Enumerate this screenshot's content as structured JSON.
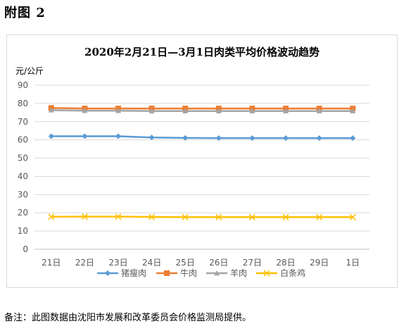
{
  "figure_label": "附图 2",
  "footnote": "备注：此图数据由沈阳市发展和改革委员会价格监测局提供。",
  "chart_data": {
    "type": "line",
    "title": "2020年2月21日—3月1日肉类平均价格波动趋势",
    "ylabel": "元/公斤",
    "xlabel": "",
    "ylim": [
      0,
      90
    ],
    "yticks": [
      0,
      10,
      20,
      30,
      40,
      50,
      60,
      70,
      80,
      90
    ],
    "grid": true,
    "legend_position": "bottom",
    "categories": [
      "21日",
      "22日",
      "23日",
      "24日",
      "25日",
      "26日",
      "27日",
      "28日",
      "29日",
      "1日"
    ],
    "series": [
      {
        "name": "猪瘦肉",
        "color": "#5b9bd5",
        "marker": "diamond",
        "values": [
          62.0,
          62.0,
          62.0,
          61.3,
          61.1,
          61.0,
          61.0,
          61.0,
          61.0,
          61.0
        ]
      },
      {
        "name": "牛肉",
        "color": "#ed7d31",
        "marker": "square",
        "values": [
          77.5,
          77.2,
          77.2,
          77.2,
          77.2,
          77.2,
          77.2,
          77.2,
          77.2,
          77.2
        ]
      },
      {
        "name": "羊肉",
        "color": "#a5a5a5",
        "marker": "triangle",
        "values": [
          76.3,
          76.0,
          76.0,
          75.8,
          75.8,
          75.8,
          75.8,
          75.8,
          75.8,
          75.8
        ]
      },
      {
        "name": "白条鸡",
        "color": "#ffc000",
        "marker": "x",
        "values": [
          17.8,
          17.9,
          17.9,
          17.7,
          17.6,
          17.6,
          17.6,
          17.6,
          17.6,
          17.6
        ]
      }
    ]
  }
}
